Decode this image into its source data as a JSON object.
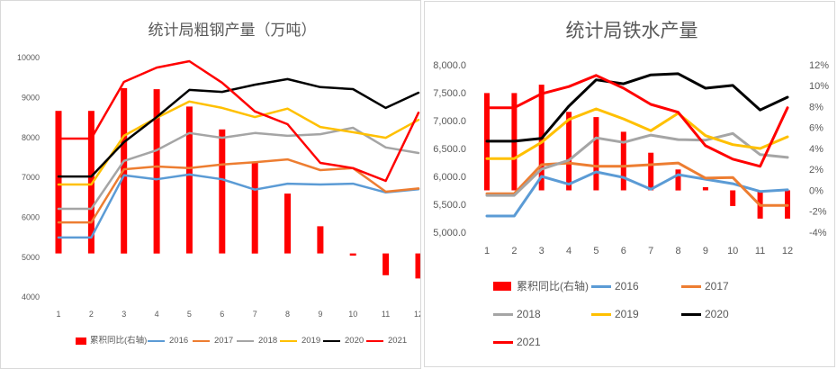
{
  "chart_data": [
    {
      "type": "line",
      "title": "统计局粗钢产量（万吨）",
      "categories": [
        "1",
        "2",
        "3",
        "4",
        "5",
        "6",
        "7",
        "8",
        "9",
        "10",
        "11",
        "12"
      ],
      "ylim": [
        4000,
        10000
      ],
      "y_tick_labels": [
        "4000",
        "5000",
        "6000",
        "7000",
        "8000",
        "9000",
        "10000"
      ],
      "y2lim": [
        -4,
        18
      ],
      "y2_axis_visible": false,
      "grid": false,
      "legend_position": "bottom",
      "series": [
        {
          "name": "累积同比(右轴)",
          "type": "bar",
          "axis": "right",
          "color": "#FF0000",
          "values": [
            13.1,
            13.1,
            15.2,
            15.1,
            13.5,
            11.4,
            8.4,
            5.5,
            2.5,
            -0.2,
            -2.0,
            -2.3
          ]
        },
        {
          "name": "2016",
          "type": "line",
          "axis": "left",
          "color": "#5B9BD5",
          "values": [
            5490,
            5490,
            7050,
            6950,
            7070,
            6950,
            6690,
            6840,
            6820,
            6840,
            6620,
            6700
          ]
        },
        {
          "name": "2017",
          "type": "line",
          "axis": "left",
          "color": "#ED7D31",
          "values": [
            5870,
            5870,
            7200,
            7270,
            7230,
            7320,
            7380,
            7450,
            7180,
            7230,
            6640,
            6720
          ]
        },
        {
          "name": "2018",
          "type": "line",
          "axis": "left",
          "color": "#A5A5A5",
          "values": [
            6210,
            6210,
            7410,
            7680,
            8110,
            7990,
            8110,
            8040,
            8080,
            8240,
            7750,
            7610
          ]
        },
        {
          "name": "2019",
          "type": "line",
          "axis": "left",
          "color": "#FFC000",
          "values": [
            6820,
            6820,
            8040,
            8490,
            8900,
            8740,
            8510,
            8720,
            8260,
            8130,
            7990,
            8440
          ]
        },
        {
          "name": "2020",
          "type": "line",
          "axis": "left",
          "color": "#000000",
          "values": [
            7020,
            7020,
            7880,
            8510,
            9190,
            9140,
            9320,
            9460,
            9260,
            9210,
            8740,
            9120
          ]
        },
        {
          "name": "2021",
          "type": "line",
          "axis": "left",
          "color": "#FF0000",
          "values": [
            7970,
            7970,
            9390,
            9750,
            9910,
            9370,
            8650,
            8330,
            7360,
            7230,
            6910,
            8620
          ]
        }
      ]
    },
    {
      "type": "line",
      "title": "统计局铁水产量",
      "categories": [
        "1",
        "2",
        "3",
        "4",
        "5",
        "6",
        "7",
        "8",
        "9",
        "10",
        "11",
        "12"
      ],
      "ylim": [
        5000,
        8000
      ],
      "y_tick_labels": [
        "5,000.0",
        "5,500.0",
        "6,000.0",
        "6,500.0",
        "7,000.0",
        "7,500.0",
        "8,000.0"
      ],
      "y2lim": [
        -4,
        12
      ],
      "y2_tick_labels": [
        "-4%",
        "-2%",
        "0%",
        "2%",
        "4%",
        "6%",
        "8%",
        "10%",
        "12%"
      ],
      "y2_axis_visible": true,
      "grid": false,
      "legend_position": "bottom",
      "series": [
        {
          "name": "累积同比(右轴)",
          "type": "bar",
          "axis": "right",
          "color": "#FF0000",
          "values": [
            9.3,
            9.3,
            10.1,
            7.5,
            7.0,
            5.6,
            3.6,
            2.0,
            0.3,
            -1.5,
            -2.7,
            -2.7
          ]
        },
        {
          "name": "2016",
          "type": "line",
          "axis": "left",
          "color": "#5B9BD5",
          "values": [
            5290,
            5290,
            6000,
            5860,
            6080,
            5980,
            5770,
            6030,
            5950,
            5870,
            5730,
            5760
          ]
        },
        {
          "name": "2017",
          "type": "line",
          "axis": "left",
          "color": "#ED7D31",
          "values": [
            5690,
            5690,
            6210,
            6240,
            6180,
            6180,
            6210,
            6240,
            5970,
            5980,
            5480,
            5480
          ]
        },
        {
          "name": "2018",
          "type": "line",
          "axis": "left",
          "color": "#A5A5A5",
          "values": [
            5660,
            5660,
            6130,
            6290,
            6690,
            6610,
            6740,
            6660,
            6650,
            6770,
            6390,
            6340
          ]
        },
        {
          "name": "2019",
          "type": "line",
          "axis": "left",
          "color": "#FFC000",
          "values": [
            6320,
            6320,
            6610,
            7020,
            7210,
            7030,
            6820,
            7130,
            6730,
            6570,
            6500,
            6710
          ]
        },
        {
          "name": "2020",
          "type": "line",
          "axis": "left",
          "color": "#000000",
          "values": [
            6630,
            6630,
            6680,
            7260,
            7730,
            7660,
            7820,
            7840,
            7580,
            7630,
            7190,
            7420
          ]
        },
        {
          "name": "2021",
          "type": "line",
          "axis": "left",
          "color": "#FF0000",
          "values": [
            7230,
            7230,
            7480,
            7610,
            7810,
            7580,
            7290,
            7150,
            6550,
            6310,
            6180,
            7230
          ]
        }
      ]
    }
  ]
}
